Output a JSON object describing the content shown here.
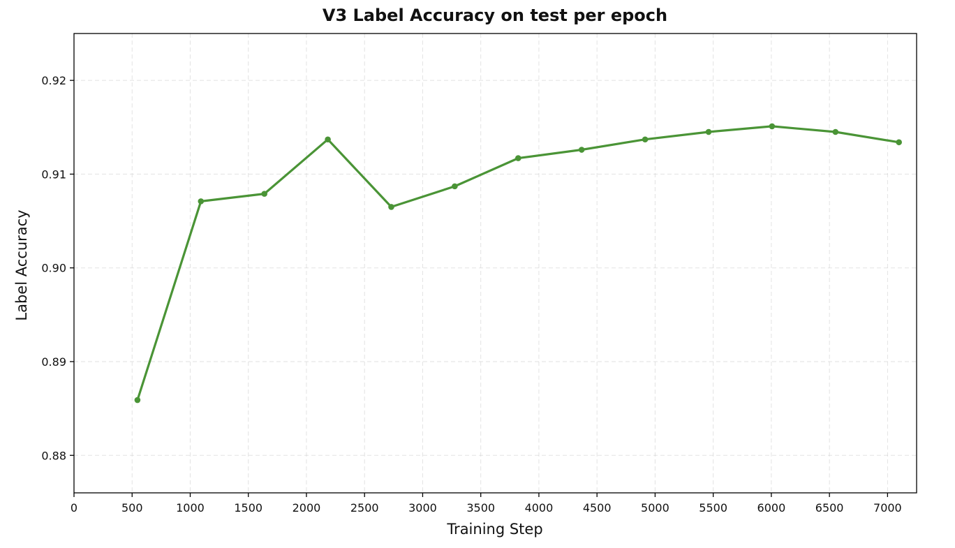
{
  "chart_data": {
    "type": "line",
    "title": "V3 Label Accuracy on test per epoch",
    "xlabel": "Training Step",
    "ylabel": "Label Accuracy",
    "xlim": [
      0,
      7250
    ],
    "ylim": [
      0.876,
      0.925
    ],
    "xticks": [
      0,
      500,
      1000,
      1500,
      2000,
      2500,
      3000,
      3500,
      4000,
      4500,
      5000,
      5500,
      6000,
      6500,
      7000
    ],
    "yticks": [
      0.88,
      0.89,
      0.9,
      0.91,
      0.92
    ],
    "ytick_labels": [
      "0.88",
      "0.89",
      "0.90",
      "0.91",
      "0.92"
    ],
    "grid": true,
    "legend": "none",
    "series": [
      {
        "color": "#4a9436",
        "marker": "circle",
        "x": [
          546,
          1092,
          1638,
          2184,
          2730,
          3276,
          3822,
          4368,
          4914,
          5460,
          6006,
          6552,
          7098
        ],
        "y": [
          0.8859,
          0.9071,
          0.9079,
          0.9137,
          0.9065,
          0.9087,
          0.9117,
          0.9126,
          0.9137,
          0.9145,
          0.9151,
          0.9145,
          0.9134
        ]
      }
    ]
  }
}
